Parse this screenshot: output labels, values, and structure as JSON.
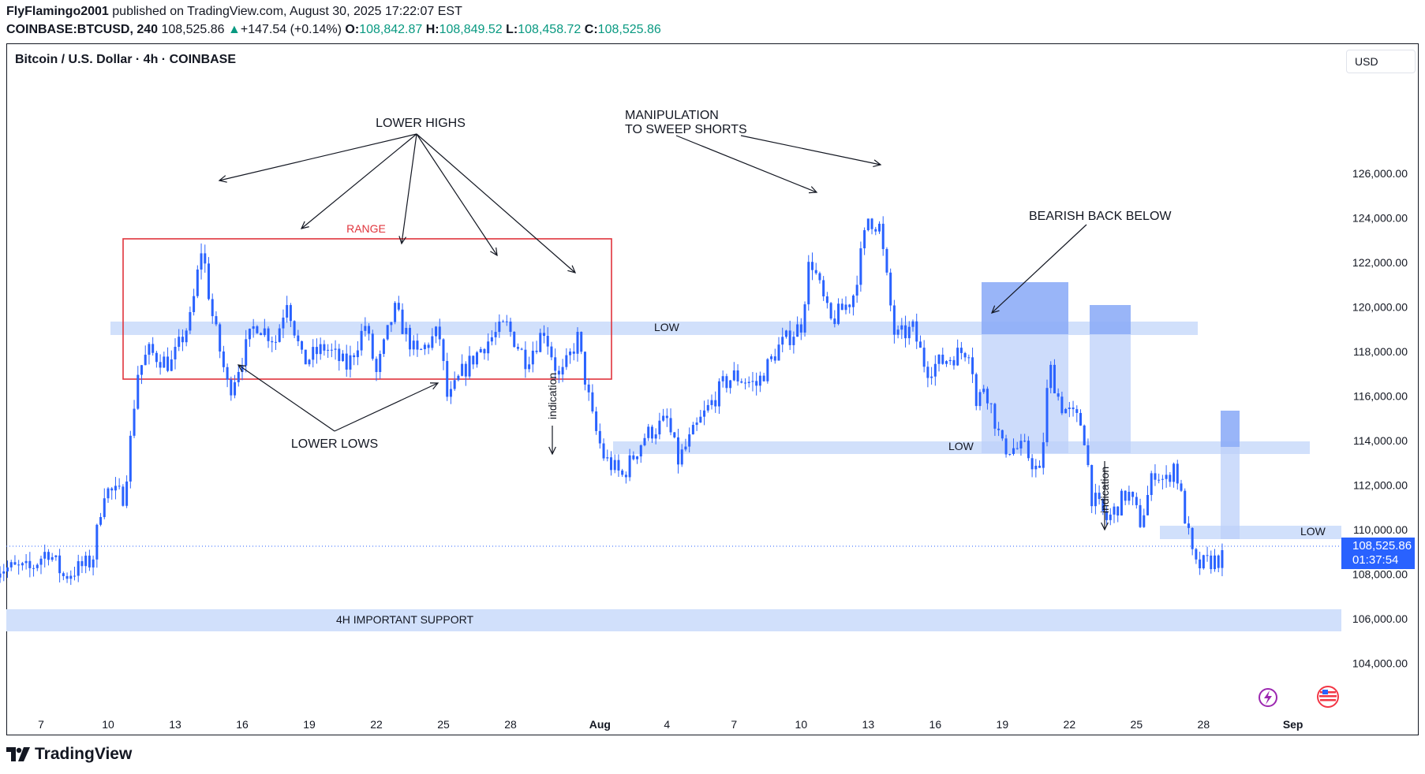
{
  "header": {
    "author": "FlyFlamingo2001",
    "published_text": "published on TradingView.com, August 30, 2025 17:22:07 EST",
    "symbol": "COINBASE:BTCUSD, 240",
    "last": "108,525.86",
    "change": "+147.54 (+0.14%)",
    "o_label": "O:",
    "o": "108,842.87",
    "h_label": "H:",
    "h": "108,849.52",
    "l_label": "L:",
    "l": "108,458.72",
    "c_label": "C:",
    "c": "108,525.86"
  },
  "chart_title": "Bitcoin / U.S. Dollar · 4h · COINBASE",
  "currency": "USD",
  "price_tag": {
    "price": "108,525.86",
    "countdown": "01:37:54"
  },
  "footer": {
    "brand": "TradingView"
  },
  "colors": {
    "up": "#089981",
    "candle": "#2962ff",
    "zone": "#d1e0fb",
    "range_box": "#e0343c",
    "accent": "#2962ff"
  },
  "annotations": {
    "range": "RANGE",
    "lower_highs": "LOWER HIGHS",
    "lower_lows": "LOWER LOWS",
    "manipulation_1": "MANIPULATION",
    "manipulation_2": "TO SWEEP SHORTS",
    "bearish": "BEARISH BACK BELOW",
    "low_1": "LOW",
    "low_2": "LOW",
    "low_3": "LOW",
    "support": "4H IMPORTANT SUPPORT",
    "indication_1": "indication",
    "indication_2": "indication"
  },
  "chart_data": {
    "type": "candlestick",
    "title": "Bitcoin / U.S. Dollar · 4h · COINBASE",
    "y_ticks": [
      "104,000.00",
      "106,000.00",
      "108,000.00",
      "110,000.00",
      "112,000.00",
      "114,000.00",
      "116,000.00",
      "118,000.00",
      "120,000.00",
      "122,000.00",
      "124,000.00",
      "126,000.00"
    ],
    "x_ticks": [
      "7",
      "10",
      "13",
      "16",
      "19",
      "22",
      "25",
      "28",
      "Aug",
      "4",
      "7",
      "10",
      "13",
      "16",
      "19",
      "22",
      "25",
      "28",
      "Sep"
    ],
    "ylim": [
      102800,
      127300
    ],
    "last_price": 108525.86,
    "close_path": [
      {
        "d": 5.0,
        "p": 108300
      },
      {
        "d": 6.5,
        "p": 108200
      },
      {
        "d": 7.3,
        "p": 109100
      },
      {
        "d": 8.0,
        "p": 107900
      },
      {
        "d": 9.3,
        "p": 108600
      },
      {
        "d": 9.8,
        "p": 111800
      },
      {
        "d": 10.7,
        "p": 111500
      },
      {
        "d": 11.0,
        "p": 114000
      },
      {
        "d": 11.3,
        "p": 117000
      },
      {
        "d": 11.8,
        "p": 118000
      },
      {
        "d": 12.8,
        "p": 117400
      },
      {
        "d": 13.7,
        "p": 119500
      },
      {
        "d": 14.2,
        "p": 122800
      },
      {
        "d": 14.6,
        "p": 119900
      },
      {
        "d": 15.4,
        "p": 116200
      },
      {
        "d": 16.6,
        "p": 119300
      },
      {
        "d": 17.5,
        "p": 118500
      },
      {
        "d": 18.0,
        "p": 120400
      },
      {
        "d": 18.7,
        "p": 117500
      },
      {
        "d": 19.7,
        "p": 118200
      },
      {
        "d": 20.7,
        "p": 117300
      },
      {
        "d": 21.5,
        "p": 119200
      },
      {
        "d": 22.0,
        "p": 117000
      },
      {
        "d": 22.8,
        "p": 119900
      },
      {
        "d": 23.8,
        "p": 117800
      },
      {
        "d": 24.8,
        "p": 118900
      },
      {
        "d": 25.2,
        "p": 115700
      },
      {
        "d": 25.8,
        "p": 117000
      },
      {
        "d": 26.8,
        "p": 118300
      },
      {
        "d": 27.8,
        "p": 119200
      },
      {
        "d": 28.7,
        "p": 117600
      },
      {
        "d": 29.5,
        "p": 119000
      },
      {
        "d": 30.2,
        "p": 116700
      },
      {
        "d": 31.0,
        "p": 118600
      },
      {
        "d": 31.7,
        "p": 114800
      },
      {
        "d": 32.2,
        "p": 113200
      },
      {
        "d": 33.0,
        "p": 112400
      },
      {
        "d": 34.0,
        "p": 114200
      },
      {
        "d": 35.0,
        "p": 114900
      },
      {
        "d": 35.5,
        "p": 113100
      },
      {
        "d": 36.5,
        "p": 114900
      },
      {
        "d": 37.5,
        "p": 116500
      },
      {
        "d": 38.0,
        "p": 116900
      },
      {
        "d": 39.0,
        "p": 116500
      },
      {
        "d": 40.0,
        "p": 118200
      },
      {
        "d": 41.0,
        "p": 119200
      },
      {
        "d": 41.4,
        "p": 122300
      },
      {
        "d": 42.3,
        "p": 119300
      },
      {
        "d": 43.3,
        "p": 120400
      },
      {
        "d": 44.0,
        "p": 124000
      },
      {
        "d": 44.5,
        "p": 123600
      },
      {
        "d": 45.2,
        "p": 118600
      },
      {
        "d": 46.0,
        "p": 119000
      },
      {
        "d": 46.6,
        "p": 117200
      },
      {
        "d": 47.6,
        "p": 117700
      },
      {
        "d": 48.6,
        "p": 118200
      },
      {
        "d": 48.8,
        "p": 115400
      },
      {
        "d": 49.2,
        "p": 116600
      },
      {
        "d": 50.0,
        "p": 113700
      },
      {
        "d": 51.0,
        "p": 113600
      },
      {
        "d": 51.7,
        "p": 112400
      },
      {
        "d": 52.1,
        "p": 117400
      },
      {
        "d": 52.6,
        "p": 115600
      },
      {
        "d": 53.6,
        "p": 114700
      },
      {
        "d": 54.0,
        "p": 111500
      },
      {
        "d": 54.7,
        "p": 110400
      },
      {
        "d": 55.6,
        "p": 111700
      },
      {
        "d": 56.2,
        "p": 110300
      },
      {
        "d": 56.8,
        "p": 112700
      },
      {
        "d": 57.3,
        "p": 112100
      },
      {
        "d": 57.7,
        "p": 113000
      },
      {
        "d": 58.2,
        "p": 110400
      },
      {
        "d": 58.6,
        "p": 108300
      },
      {
        "d": 59.4,
        "p": 108600
      },
      {
        "d": 59.9,
        "p": 108700
      }
    ]
  }
}
